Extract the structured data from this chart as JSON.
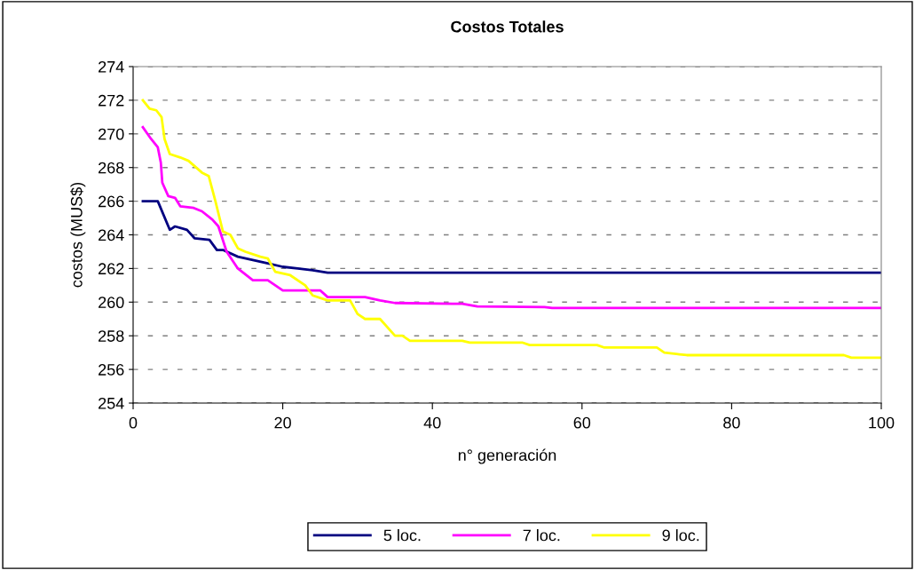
{
  "chart_data": {
    "type": "line",
    "title": "Costos Totales",
    "xlabel": "n° generación",
    "ylabel": "costos (MUS$)",
    "xlim": [
      0,
      100
    ],
    "xticks": [
      0,
      20,
      40,
      60,
      80,
      100
    ],
    "ylim": [
      254,
      274
    ],
    "yticks": [
      254,
      256,
      258,
      260,
      262,
      264,
      266,
      268,
      270,
      272,
      274
    ],
    "grid": "y",
    "legend": "bottom",
    "marker": "none",
    "line_style": "solid",
    "series": [
      {
        "name": "5 loc.",
        "color": "#000080",
        "x": [
          1.3,
          3.3,
          4.9,
          5.6,
          7.2,
          8.2,
          10.2,
          11.2,
          12,
          14,
          16,
          18,
          20,
          22,
          24,
          26,
          100
        ],
        "values": [
          266.0,
          266.0,
          264.3,
          264.5,
          264.3,
          263.8,
          263.7,
          263.1,
          263.1,
          262.7,
          262.5,
          262.3,
          262.1,
          262.0,
          261.9,
          261.75,
          261.75
        ]
      },
      {
        "name": "7 loc.",
        "color": "#ff00ff",
        "x": [
          1.3,
          2.4,
          3.3,
          3.7,
          3.9,
          4.7,
          5.6,
          6.3,
          8.1,
          9.2,
          10.6,
          11.4,
          12.5,
          14,
          16,
          18,
          20,
          25,
          26,
          31,
          33,
          35,
          44,
          46,
          55,
          56,
          100
        ],
        "values": [
          270.4,
          269.7,
          269.2,
          268.3,
          267.1,
          266.3,
          266.2,
          265.7,
          265.6,
          265.4,
          264.9,
          264.5,
          263.0,
          262.0,
          261.3,
          261.3,
          260.7,
          260.7,
          260.3,
          260.3,
          260.1,
          259.95,
          259.9,
          259.75,
          259.7,
          259.65,
          259.65
        ]
      },
      {
        "name": "9 loc.",
        "color": "#ffff00",
        "x": [
          1.3,
          2.2,
          3.1,
          3.8,
          4.2,
          4.9,
          6.3,
          7.4,
          9.2,
          10.1,
          11,
          12,
          13,
          14,
          15,
          17,
          18,
          19,
          21,
          23,
          24,
          26,
          29,
          30,
          31,
          33,
          35,
          36,
          37,
          44,
          45,
          52,
          53,
          62,
          63,
          70,
          71,
          73,
          74,
          95,
          96,
          100
        ],
        "values": [
          272.0,
          271.5,
          271.4,
          271.0,
          269.7,
          268.8,
          268.6,
          268.4,
          267.7,
          267.5,
          266.0,
          264.2,
          264.0,
          263.2,
          263.0,
          262.7,
          262.6,
          261.8,
          261.6,
          261.0,
          260.4,
          260.1,
          260.1,
          259.3,
          259.0,
          259.0,
          258.0,
          258.0,
          257.7,
          257.7,
          257.6,
          257.6,
          257.45,
          257.45,
          257.3,
          257.3,
          257.0,
          256.9,
          256.85,
          256.85,
          256.7,
          256.7
        ]
      }
    ]
  }
}
